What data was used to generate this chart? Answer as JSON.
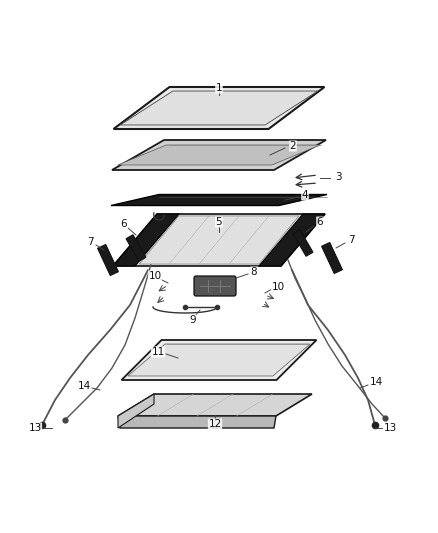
{
  "bg_color": "#ffffff",
  "fig_width": 4.38,
  "fig_height": 5.33,
  "dpi": 100,
  "skew": 0.38,
  "parts_color": "#1a1a1a",
  "glass_fill": "#e8e8e8",
  "frame_fill": "#c0c0c0",
  "label_fs": 7.5
}
